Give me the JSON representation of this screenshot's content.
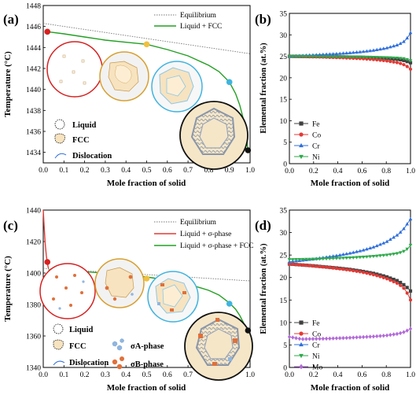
{
  "panels": {
    "a": {
      "tag": "(a)",
      "ylabel": "Temperature (°C)",
      "xlabel": "Mole fraction of solid",
      "xticks": [
        "0.0",
        "0.1",
        "0.2",
        "0.3",
        "0.4",
        "0.5",
        "0.6",
        "0.7",
        "0.8",
        "0.9",
        "1.0"
      ],
      "yticks": [
        "1434",
        "1436",
        "1438",
        "1440",
        "1442",
        "1444",
        "1446",
        "1448"
      ],
      "legend": [
        "Equilibrium",
        "Liquid + FCC"
      ],
      "key": [
        "Liquid",
        "FCC",
        "Dislocation"
      ]
    },
    "b": {
      "tag": "(b)",
      "ylabel": "Elemental fraction (at.%)",
      "xlabel": "Mole fraction of solid",
      "xticks": [
        "0.0",
        "0.2",
        "0.4",
        "0.6",
        "0.8",
        "1.0"
      ],
      "yticks": [
        "0",
        "5",
        "10",
        "15",
        "20",
        "25",
        "30",
        "35"
      ],
      "legend": [
        "Fe",
        "Co",
        "Cr",
        "Ni"
      ]
    },
    "c": {
      "tag": "(c)",
      "ylabel": "Temperature (°C)",
      "xlabel": "Mole fraction of solid",
      "xticks": [
        "0.0",
        "0.1",
        "0.2",
        "0.3",
        "0.4",
        "0.5",
        "0.6",
        "0.7",
        "0.8",
        "0.9",
        "1.0"
      ],
      "yticks": [
        "1340",
        "1360",
        "1380",
        "1400",
        "1420",
        "1440"
      ],
      "legend": [
        "Equilibrium",
        "Liquid + σ-phase",
        "Liquid + σ-phase + FCC"
      ],
      "key": [
        "Liquid",
        "FCC",
        "Dislocation",
        "σA-phase",
        "σB-phase"
      ]
    },
    "d": {
      "tag": "(d)",
      "ylabel": "Elemental fraction (at.%)",
      "xlabel": "Mole fraction of solid",
      "xticks": [
        "0.0",
        "0.2",
        "0.4",
        "0.6",
        "0.8",
        "1.0"
      ],
      "yticks": [
        "0",
        "5",
        "10",
        "15",
        "20",
        "25",
        "30",
        "35"
      ],
      "legend": [
        "Fe",
        "Co",
        "Cr",
        "Ni",
        "Mo"
      ]
    }
  },
  "colors": {
    "equilibrium": "#777777",
    "liquid_fcc": "#22a022",
    "liquid_sigma": "#e53935",
    "Fe": "#404040",
    "Co": "#e53935",
    "Cr": "#2f6fdc",
    "Ni": "#2eaa4a",
    "Mo": "#b26ad8",
    "circle_red": "#d62020",
    "circle_gold": "#d8a030",
    "circle_cyan": "#3fb4e0",
    "circle_black": "#111111",
    "fcc_fill": "#f7e3bf",
    "sigma_a": "#8fb6e0",
    "sigma_b": "#e0703a"
  },
  "chart_data": [
    {
      "panel": "a",
      "type": "line",
      "xlabel": "Mole fraction of solid",
      "ylabel": "Temperature (°C)",
      "xlim": [
        0,
        1
      ],
      "ylim": [
        1433,
        1448
      ],
      "series": [
        {
          "name": "Equilibrium",
          "style": "dotted",
          "x": [
            0.0,
            1.0
          ],
          "y": [
            1446.3,
            1443.4
          ]
        },
        {
          "name": "Liquid + FCC",
          "x": [
            0.02,
            0.1,
            0.2,
            0.3,
            0.4,
            0.5,
            0.6,
            0.7,
            0.8,
            0.85,
            0.9,
            0.93,
            0.95,
            0.97,
            0.98,
            0.99
          ],
          "y": [
            1445.5,
            1445.3,
            1445.0,
            1444.7,
            1444.5,
            1444.3,
            1443.8,
            1443.2,
            1442.3,
            1441.7,
            1440.7,
            1439.6,
            1438.5,
            1437.0,
            1435.8,
            1434.2
          ]
        }
      ],
      "markers": [
        {
          "x": 0.02,
          "y": 1445.5,
          "color": "#d62020"
        },
        {
          "x": 0.5,
          "y": 1444.3,
          "color": "#f0c040"
        },
        {
          "x": 0.9,
          "y": 1440.7,
          "color": "#3fb4e0"
        },
        {
          "x": 0.99,
          "y": 1434.2,
          "color": "#111111"
        }
      ]
    },
    {
      "panel": "b",
      "type": "line",
      "xlabel": "Mole fraction of solid",
      "ylabel": "Elemental fraction (at.%)",
      "xlim": [
        0,
        1
      ],
      "ylim": [
        0,
        35
      ],
      "series": [
        {
          "name": "Fe",
          "marker": "square",
          "x": [
            0,
            0.1,
            0.2,
            0.3,
            0.4,
            0.5,
            0.6,
            0.7,
            0.8,
            0.9,
            0.95,
            0.98,
            1.0
          ],
          "y": [
            25.0,
            24.97,
            24.95,
            24.92,
            24.88,
            24.83,
            24.77,
            24.68,
            24.55,
            24.3,
            24.0,
            23.7,
            23.5
          ]
        },
        {
          "name": "Co",
          "marker": "circle",
          "x": [
            0,
            0.1,
            0.2,
            0.3,
            0.4,
            0.5,
            0.6,
            0.7,
            0.8,
            0.9,
            0.95,
            0.98,
            1.0
          ],
          "y": [
            25.0,
            24.95,
            24.88,
            24.8,
            24.7,
            24.6,
            24.45,
            24.25,
            23.95,
            23.5,
            23.0,
            22.5,
            22.0
          ]
        },
        {
          "name": "Cr",
          "marker": "triangle-up",
          "x": [
            0,
            0.1,
            0.2,
            0.3,
            0.4,
            0.5,
            0.6,
            0.7,
            0.8,
            0.9,
            0.95,
            0.98,
            1.0
          ],
          "y": [
            25.0,
            25.15,
            25.3,
            25.45,
            25.6,
            25.8,
            26.05,
            26.4,
            26.9,
            27.7,
            28.5,
            29.5,
            30.5
          ]
        },
        {
          "name": "Ni",
          "marker": "triangle-down",
          "x": [
            0,
            0.1,
            0.2,
            0.3,
            0.4,
            0.5,
            0.6,
            0.7,
            0.8,
            0.9,
            0.95,
            0.98,
            1.0
          ],
          "y": [
            25.0,
            24.98,
            24.95,
            24.93,
            24.9,
            24.88,
            24.85,
            24.8,
            24.72,
            24.6,
            24.45,
            24.2,
            24.0
          ]
        }
      ]
    },
    {
      "panel": "c",
      "type": "line",
      "xlabel": "Mole fraction of solid",
      "ylabel": "Temperature (°C)",
      "xlim": [
        0,
        1
      ],
      "ylim": [
        1340,
        1440
      ],
      "series": [
        {
          "name": "Equilibrium",
          "style": "dotted",
          "x": [
            0.0,
            1.0
          ],
          "y": [
            1403,
            1395
          ]
        },
        {
          "name": "Liquid + σ-phase",
          "x": [
            0.0,
            0.005,
            0.01,
            0.015,
            0.02,
            0.025
          ],
          "y": [
            1440,
            1428,
            1418,
            1411,
            1406,
            1403
          ]
        },
        {
          "name": "Liquid + σ-phase + FCC",
          "x": [
            0.025,
            0.1,
            0.2,
            0.3,
            0.4,
            0.5,
            0.6,
            0.7,
            0.8,
            0.85,
            0.9,
            0.93,
            0.95,
            0.97,
            0.99
          ],
          "y": [
            1402,
            1401.5,
            1400.8,
            1400,
            1399,
            1397.5,
            1395.5,
            1393,
            1389,
            1386,
            1381,
            1377,
            1373,
            1368,
            1363
          ]
        }
      ],
      "markers": [
        {
          "x": 0.02,
          "y": 1407,
          "color": "#d62020"
        },
        {
          "x": 0.5,
          "y": 1396.5,
          "color": "#f0c040"
        },
        {
          "x": 0.9,
          "y": 1380.5,
          "color": "#3fb4e0"
        },
        {
          "x": 0.99,
          "y": 1363.5,
          "color": "#111111"
        }
      ]
    },
    {
      "panel": "d",
      "type": "line",
      "xlabel": "Mole fraction of solid",
      "ylabel": "Elemental fraction (at.%)",
      "xlim": [
        0,
        1
      ],
      "ylim": [
        0,
        35
      ],
      "series": [
        {
          "name": "Fe",
          "marker": "square",
          "x": [
            0,
            0.1,
            0.2,
            0.3,
            0.4,
            0.5,
            0.6,
            0.7,
            0.8,
            0.9,
            0.95,
            0.98,
            1.0
          ],
          "y": [
            23.0,
            22.8,
            22.6,
            22.35,
            22.1,
            21.8,
            21.4,
            20.9,
            20.2,
            19.2,
            18.3,
            17.6,
            17.0
          ]
        },
        {
          "name": "Co",
          "marker": "circle",
          "x": [
            0,
            0.1,
            0.2,
            0.3,
            0.4,
            0.5,
            0.6,
            0.7,
            0.8,
            0.9,
            0.95,
            0.98,
            1.0
          ],
          "y": [
            23.0,
            22.8,
            22.55,
            22.3,
            22.0,
            21.65,
            21.2,
            20.6,
            19.8,
            18.6,
            17.5,
            16.2,
            15.0
          ]
        },
        {
          "name": "Cr",
          "marker": "triangle-up",
          "x": [
            0,
            0.1,
            0.2,
            0.3,
            0.4,
            0.5,
            0.6,
            0.7,
            0.8,
            0.9,
            0.95,
            0.98,
            1.0
          ],
          "y": [
            23.5,
            23.8,
            24.1,
            24.5,
            24.9,
            25.4,
            26.0,
            26.8,
            27.9,
            29.6,
            31.0,
            32.2,
            33.0
          ]
        },
        {
          "name": "Ni",
          "marker": "triangle-down",
          "x": [
            0,
            0.1,
            0.2,
            0.3,
            0.4,
            0.5,
            0.6,
            0.7,
            0.8,
            0.9,
            0.95,
            0.98,
            1.0
          ],
          "y": [
            24.0,
            24.05,
            24.1,
            24.2,
            24.3,
            24.4,
            24.55,
            24.75,
            25.0,
            25.4,
            25.9,
            26.5,
            27.2
          ]
        },
        {
          "name": "Mo",
          "marker": "diamond",
          "x": [
            0,
            0.1,
            0.2,
            0.3,
            0.4,
            0.5,
            0.6,
            0.7,
            0.8,
            0.9,
            0.95,
            0.98,
            1.0
          ],
          "y": [
            6.8,
            6.3,
            6.35,
            6.4,
            6.5,
            6.6,
            6.75,
            6.9,
            7.1,
            7.5,
            7.9,
            8.3,
            8.6
          ]
        }
      ]
    }
  ]
}
